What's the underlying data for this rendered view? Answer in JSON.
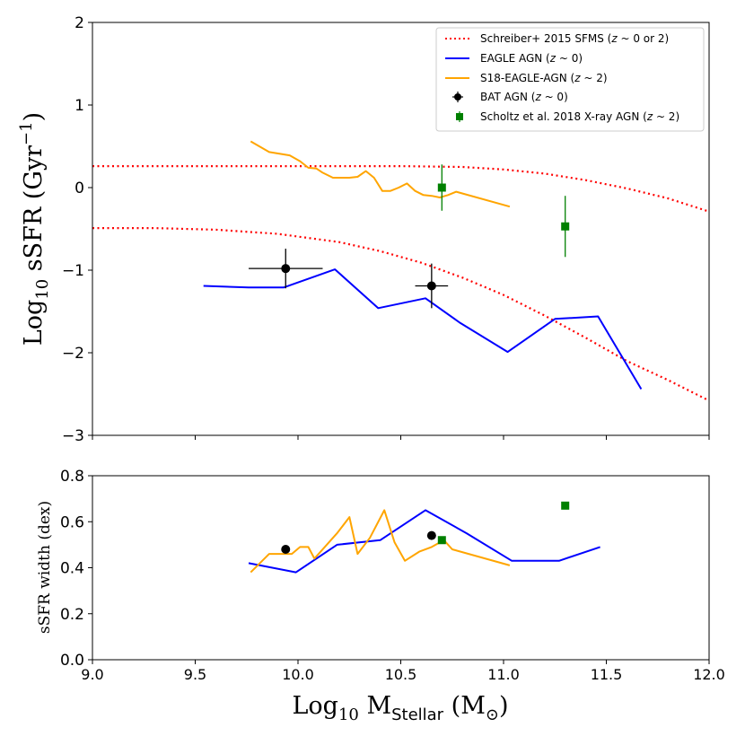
{
  "chart_data": [
    {
      "type": "line",
      "panel": "top",
      "ylabel": "Log10 sSFR (Gyr^-1)",
      "xlim": [
        9.0,
        12.0
      ],
      "ylim": [
        -3,
        2
      ],
      "xticks": [
        9.0,
        9.5,
        10.0,
        10.5,
        11.0,
        11.5,
        12.0
      ],
      "yticks": [
        -3,
        -2,
        -1,
        0,
        1,
        2
      ],
      "ytick_labels": [
        "−3",
        "−2",
        "−1",
        "0",
        "1",
        "2"
      ],
      "legend_position": "top-right",
      "series": [
        {
          "name": "Schreiber+ 2015 SFMS (z ~ 0 or 2)",
          "legend_main": "Schreiber+ 2015 SFMS (",
          "legend_z": "z",
          "legend_rest": " ~ 0 or 2)",
          "style": "dotted",
          "color": "#ff0000",
          "lines": [
            {
              "x": [
                9.0,
                9.3,
                9.6,
                9.9,
                10.2,
                10.5,
                10.8,
                11.0,
                11.2,
                11.4,
                11.6,
                11.8,
                12.0
              ],
              "y": [
                0.26,
                0.26,
                0.26,
                0.26,
                0.26,
                0.26,
                0.25,
                0.22,
                0.17,
                0.09,
                -0.01,
                -0.13,
                -0.29
              ]
            },
            {
              "x": [
                9.0,
                9.3,
                9.6,
                9.9,
                10.2,
                10.4,
                10.6,
                10.8,
                11.0,
                11.2,
                11.4,
                11.6,
                11.8,
                12.0
              ],
              "y": [
                -0.49,
                -0.49,
                -0.51,
                -0.56,
                -0.66,
                -0.77,
                -0.91,
                -1.09,
                -1.3,
                -1.55,
                -1.82,
                -2.1,
                -2.33,
                -2.58
              ]
            }
          ]
        },
        {
          "name": "EAGLE AGN (z ~ 0)",
          "legend_main": "EAGLE AGN (",
          "legend_z": "z",
          "legend_rest": " ~ 0)",
          "style": "solid",
          "color": "#0000ff",
          "x": [
            9.54,
            9.76,
            9.93,
            10.18,
            10.39,
            10.62,
            10.79,
            11.02,
            11.25,
            11.46,
            11.67
          ],
          "y": [
            -1.19,
            -1.21,
            -1.21,
            -0.99,
            -1.46,
            -1.34,
            -1.64,
            -1.99,
            -1.59,
            -1.56,
            -2.44
          ]
        },
        {
          "name": "S18-EAGLE-AGN (z ~ 2)",
          "legend_main": "S18-EAGLE-AGN (",
          "legend_z": "z",
          "legend_rest": " ~ 2)",
          "style": "solid",
          "color": "#ffa500",
          "x": [
            9.77,
            9.86,
            9.96,
            10.01,
            10.05,
            10.09,
            10.12,
            10.17,
            10.21,
            10.25,
            10.29,
            10.33,
            10.37,
            10.41,
            10.45,
            10.49,
            10.53,
            10.57,
            10.61,
            10.65,
            10.69,
            10.73,
            10.77,
            11.03
          ],
          "y": [
            0.56,
            0.43,
            0.39,
            0.32,
            0.24,
            0.23,
            0.18,
            0.12,
            0.12,
            0.12,
            0.13,
            0.2,
            0.12,
            -0.04,
            -0.04,
            0.0,
            0.05,
            -0.04,
            -0.09,
            -0.1,
            -0.12,
            -0.09,
            -0.05,
            -0.23
          ]
        },
        {
          "name": "BAT AGN (z ~ 0)",
          "legend_main": "BAT AGN (",
          "legend_z": "z",
          "legend_rest": " ~ 0)",
          "style": "marker-circle",
          "color": "#000000",
          "points": [
            {
              "x": 9.94,
              "y": -0.98,
              "xerr": 0.18,
              "yerr": 0.24
            },
            {
              "x": 10.65,
              "y": -1.19,
              "xerr": 0.08,
              "yerr": 0.27
            }
          ]
        },
        {
          "name": "Scholtz et al. 2018 X-ray AGN (z ~ 2)",
          "legend_main": "Scholtz et al. 2018 X-ray AGN (",
          "legend_z": "z",
          "legend_rest": " ~ 2)",
          "style": "marker-square",
          "color": "#008000",
          "points": [
            {
              "x": 10.7,
              "y": 0.0,
              "xerr": 0,
              "yerr": 0.28
            },
            {
              "x": 11.3,
              "y": -0.47,
              "xerr": 0,
              "yerr": 0.37
            }
          ]
        }
      ]
    },
    {
      "type": "line",
      "panel": "bottom",
      "xlabel": "Log10 M_Stellar (M_sun)",
      "ylabel": "sSFR width (dex)",
      "xlim": [
        9.0,
        12.0
      ],
      "ylim": [
        0.0,
        0.8
      ],
      "xticks": [
        9.0,
        9.5,
        10.0,
        10.5,
        11.0,
        11.5,
        12.0
      ],
      "xtick_labels": [
        "9.0",
        "9.5",
        "10.0",
        "10.5",
        "11.0",
        "11.5",
        "12.0"
      ],
      "yticks": [
        0.0,
        0.2,
        0.4,
        0.6,
        0.8
      ],
      "ytick_labels": [
        "0.0",
        "0.2",
        "0.4",
        "0.6",
        "0.8"
      ],
      "series": [
        {
          "name": "EAGLE AGN (z ~ 0)",
          "style": "solid",
          "color": "#0000ff",
          "x": [
            9.76,
            9.99,
            10.19,
            10.4,
            10.62,
            10.82,
            11.04,
            11.27,
            11.47
          ],
          "y": [
            0.42,
            0.38,
            0.5,
            0.52,
            0.65,
            0.55,
            0.43,
            0.43,
            0.49
          ]
        },
        {
          "name": "S18-EAGLE-AGN (z ~ 2)",
          "style": "solid",
          "color": "#ffa500",
          "x": [
            9.77,
            9.86,
            9.93,
            9.97,
            10.01,
            10.05,
            10.08,
            10.13,
            10.19,
            10.25,
            10.29,
            10.35,
            10.42,
            10.47,
            10.52,
            10.59,
            10.65,
            10.71,
            10.75,
            11.03
          ],
          "y": [
            0.38,
            0.46,
            0.46,
            0.46,
            0.49,
            0.49,
            0.44,
            0.49,
            0.55,
            0.62,
            0.46,
            0.53,
            0.65,
            0.51,
            0.43,
            0.47,
            0.49,
            0.52,
            0.48,
            0.41
          ]
        },
        {
          "name": "BAT AGN (z ~ 0)",
          "style": "marker-circle",
          "color": "#000000",
          "points": [
            {
              "x": 9.94,
              "y": 0.48
            },
            {
              "x": 10.65,
              "y": 0.54
            }
          ]
        },
        {
          "name": "Scholtz et al. 2018 X-ray AGN (z ~ 2)",
          "style": "marker-square",
          "color": "#008000",
          "points": [
            {
              "x": 10.7,
              "y": 0.52
            },
            {
              "x": 11.3,
              "y": 0.67
            }
          ]
        }
      ]
    }
  ],
  "labels": {
    "top_ylabel_main": "Log",
    "top_ylabel_sub": "10",
    "top_ylabel_rest": " sSFR (Gyr",
    "top_ylabel_sup": "−1",
    "top_ylabel_close": ")",
    "bottom_ylabel": "sSFR width (dex)",
    "xlabel_main": "Log",
    "xlabel_sub10": "10",
    "xlabel_m": " M",
    "xlabel_sub_stellar": "Stellar",
    "xlabel_rest": " (M",
    "xlabel_sun": "⊙",
    "xlabel_close": ")"
  }
}
